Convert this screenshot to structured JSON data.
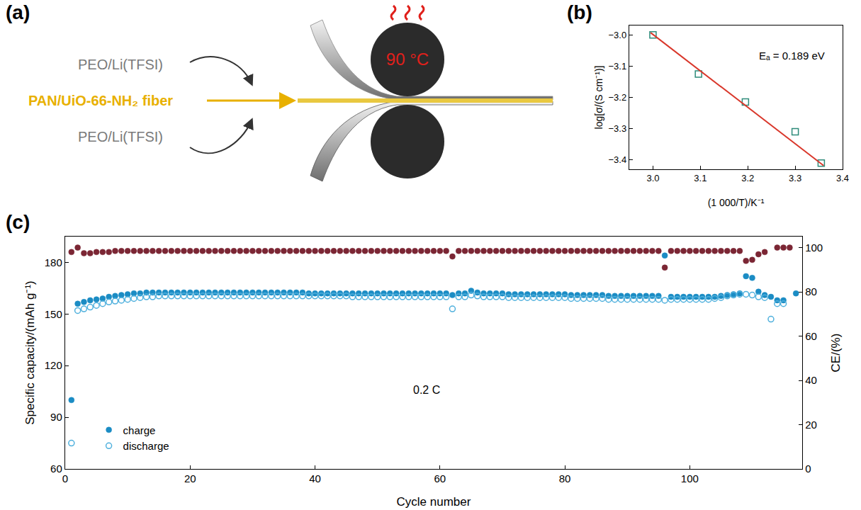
{
  "diagram": {
    "panel_label": "(a)",
    "labels": {
      "top_film": "PEO/Li(TFSI)",
      "fiber": "PAN/UiO-66-NH₂ fiber",
      "bottom_film": "PEO/Li(TFSI)",
      "temperature": "90 °C"
    }
  },
  "chart_data": [
    {
      "panel_label": "(b)",
      "type": "scatter",
      "x_label": "(1 000/T)/K⁻¹",
      "y_label": "log[σ/(S cm⁻¹)]",
      "annotations": [
        "Eₐ = 0.189 eV"
      ],
      "series": [
        {
          "type": "scatter",
          "marker": "open square",
          "color": "#2e8b7a",
          "x": [
            3.0,
            3.096,
            3.195,
            3.3,
            3.355
          ],
          "values": [
            -3.0,
            -3.125,
            -3.215,
            -3.31,
            -3.41
          ]
        },
        {
          "type": "line",
          "line_style": "solid",
          "color": "#d9372b",
          "x": [
            2.995,
            3.36
          ],
          "values": [
            -2.993,
            -3.418
          ]
        }
      ],
      "xlim": [
        2.95,
        3.4
      ],
      "xticks": [
        {
          "value": 3,
          "label": "3.0"
        },
        {
          "value": 3.1,
          "label": "3.1"
        },
        {
          "value": 3.2,
          "label": "3.2"
        },
        {
          "value": 3.3,
          "label": "3.3"
        },
        {
          "value": 3.4,
          "label": "3.4"
        }
      ],
      "ylim": [
        -3.43,
        -2.97
      ],
      "yticks": [
        {
          "value": -3,
          "label": "−3.0"
        },
        {
          "value": -3.1,
          "label": "−3.1"
        },
        {
          "value": -3.2,
          "label": "−3.2"
        },
        {
          "value": -3.3,
          "label": "−3.3"
        },
        {
          "value": -3.4,
          "label": "−3.4"
        }
      ],
      "grid": false
    },
    {
      "panel_label": "(c)",
      "type": "scatter",
      "x_label": "Cycle number",
      "y_label": "Specific capacity/(mAh g⁻¹)",
      "y2_label": "CE/(%)",
      "annotations": [
        "0.2 C"
      ],
      "legend": "lower left",
      "series": [
        {
          "name": "charge",
          "type": "scatter",
          "marker": "circle",
          "color": "#1b8cc4",
          "x": [
            1,
            2,
            3,
            4,
            5,
            6,
            7,
            8,
            9,
            10,
            11,
            12,
            13,
            14,
            15,
            16,
            17,
            18,
            19,
            20,
            21,
            22,
            23,
            24,
            25,
            26,
            27,
            28,
            29,
            30,
            31,
            32,
            33,
            34,
            35,
            36,
            37,
            38,
            39,
            40,
            41,
            42,
            43,
            44,
            45,
            46,
            47,
            48,
            49,
            50,
            51,
            52,
            53,
            54,
            55,
            56,
            57,
            58,
            59,
            60,
            61,
            62,
            63,
            64,
            65,
            66,
            67,
            68,
            69,
            70,
            71,
            72,
            73,
            74,
            75,
            76,
            77,
            78,
            79,
            80,
            81,
            82,
            83,
            84,
            85,
            86,
            87,
            88,
            89,
            90,
            91,
            92,
            93,
            94,
            95,
            96,
            97,
            98,
            99,
            100,
            101,
            102,
            103,
            104,
            105,
            106,
            107,
            108,
            109,
            110,
            111,
            112,
            113,
            114,
            115,
            116,
            117
          ],
          "values": [
            100,
            156,
            157,
            158,
            158.5,
            159,
            160,
            160.5,
            161,
            161.5,
            162,
            162,
            162.5,
            162.5,
            162.5,
            162.5,
            162.5,
            162.5,
            162.5,
            162.5,
            162.5,
            162.5,
            162.5,
            162.5,
            162.5,
            162.5,
            162.5,
            162.5,
            162.5,
            162.5,
            162.5,
            162.5,
            162.5,
            162.5,
            162.5,
            162.5,
            162.5,
            162.5,
            162,
            162,
            162,
            162,
            162,
            162,
            162,
            162,
            162,
            162,
            162,
            162,
            162,
            162,
            162,
            162,
            162,
            162,
            162,
            162,
            162,
            162,
            162,
            161,
            162,
            162,
            163.5,
            162.5,
            162,
            162,
            162,
            162,
            161.5,
            161.5,
            161.5,
            161.5,
            161.5,
            161.5,
            161.5,
            161.5,
            161.5,
            161.5,
            161,
            161,
            161,
            161,
            161,
            161,
            160.5,
            160.5,
            160.5,
            160.5,
            160.5,
            160.5,
            160.5,
            160.5,
            160.5,
            184,
            160,
            160,
            160,
            160,
            160,
            160,
            160,
            160,
            160.5,
            161,
            161.5,
            162,
            172,
            171,
            163,
            161,
            160,
            158,
            158,
            null,
            162
          ]
        },
        {
          "name": "discharge",
          "type": "scatter",
          "marker": "open circle",
          "color": "#4fb0dd",
          "x": [
            1,
            2,
            3,
            4,
            5,
            6,
            7,
            8,
            9,
            10,
            11,
            12,
            13,
            14,
            15,
            16,
            17,
            18,
            19,
            20,
            21,
            22,
            23,
            24,
            25,
            26,
            27,
            28,
            29,
            30,
            31,
            32,
            33,
            34,
            35,
            36,
            37,
            38,
            39,
            40,
            41,
            42,
            43,
            44,
            45,
            46,
            47,
            48,
            49,
            50,
            51,
            52,
            53,
            54,
            55,
            56,
            57,
            58,
            59,
            60,
            61,
            62,
            63,
            64,
            65,
            66,
            67,
            68,
            69,
            70,
            71,
            72,
            73,
            74,
            75,
            76,
            77,
            78,
            79,
            80,
            81,
            82,
            83,
            84,
            85,
            86,
            87,
            88,
            89,
            90,
            91,
            92,
            93,
            94,
            95,
            96,
            97,
            98,
            99,
            100,
            101,
            102,
            103,
            104,
            105,
            106,
            107,
            108,
            109,
            110,
            111,
            112,
            113,
            114,
            115,
            116,
            117
          ],
          "values": [
            75,
            152,
            153,
            154,
            155,
            156,
            157,
            157.5,
            158,
            158.5,
            159,
            159.5,
            160,
            160,
            160.5,
            160.5,
            160.5,
            160.5,
            160.5,
            160.5,
            160.5,
            160.5,
            160.5,
            160.5,
            160.5,
            160.5,
            160.5,
            160.5,
            160.5,
            160.5,
            160.5,
            160.5,
            160.5,
            160.5,
            160.5,
            160.5,
            160.5,
            160.5,
            160.5,
            160.5,
            160.5,
            160.5,
            160.5,
            160.5,
            160.5,
            160,
            160,
            160,
            160,
            160,
            160,
            160,
            160,
            160,
            160,
            160,
            160,
            160,
            160,
            160,
            160,
            153,
            160,
            160,
            161,
            160.5,
            160,
            160,
            160,
            160,
            159.5,
            159.5,
            159.5,
            159.5,
            159.5,
            159.5,
            159.5,
            159.5,
            159.5,
            159.5,
            159,
            159,
            159,
            159,
            159,
            159,
            158.5,
            158.5,
            158.5,
            158.5,
            158.5,
            158.5,
            158.5,
            158.5,
            158.5,
            158,
            158.5,
            158.5,
            158.5,
            158.5,
            158.5,
            158.5,
            158.5,
            159,
            159.5,
            160.5,
            161,
            161.5,
            161.5,
            161,
            160,
            159.5,
            147,
            156,
            156,
            null,
            null
          ]
        },
        {
          "type": "scatter",
          "marker": "circle",
          "color": "#7b2634",
          "axis": "y2",
          "x": [
            1,
            2,
            3,
            4,
            5,
            6,
            7,
            8,
            9,
            10,
            11,
            12,
            13,
            14,
            15,
            16,
            17,
            18,
            19,
            20,
            21,
            22,
            23,
            24,
            25,
            26,
            27,
            28,
            29,
            30,
            31,
            32,
            33,
            34,
            35,
            36,
            37,
            38,
            39,
            40,
            41,
            42,
            43,
            44,
            45,
            46,
            47,
            48,
            49,
            50,
            51,
            52,
            53,
            54,
            55,
            56,
            57,
            58,
            59,
            60,
            61,
            62,
            63,
            64,
            65,
            66,
            67,
            68,
            69,
            70,
            71,
            72,
            73,
            74,
            75,
            76,
            77,
            78,
            79,
            80,
            81,
            82,
            83,
            84,
            85,
            86,
            87,
            88,
            89,
            90,
            91,
            92,
            93,
            94,
            95,
            96,
            97,
            98,
            99,
            100,
            101,
            102,
            103,
            104,
            105,
            106,
            107,
            108,
            109,
            110,
            111,
            112,
            113,
            114,
            115,
            116,
            117
          ],
          "values": [
            98,
            100,
            97.5,
            97.5,
            98,
            98,
            98,
            98.5,
            98.5,
            98.5,
            98.5,
            98.5,
            98.5,
            98.5,
            98.5,
            98.5,
            98.5,
            98.5,
            98.5,
            98.5,
            98.5,
            98.5,
            98.5,
            98.5,
            98.5,
            98.5,
            98.5,
            98.5,
            98.5,
            98.5,
            98.5,
            98.5,
            98.5,
            98.5,
            98.5,
            98.5,
            98.5,
            98.5,
            98.5,
            98.5,
            98.5,
            98.5,
            98.5,
            98.5,
            98.5,
            98.5,
            98.5,
            98.5,
            98.5,
            98.5,
            98.5,
            98.5,
            98.5,
            98.5,
            98.5,
            98.5,
            98.5,
            98.5,
            98.5,
            98.5,
            98.5,
            96,
            98.5,
            98.5,
            98.5,
            98.5,
            98.5,
            98.5,
            98.5,
            98.5,
            98.5,
            98.5,
            98.5,
            98.5,
            98.5,
            98.5,
            98.5,
            98.5,
            98.5,
            98.5,
            98.5,
            98.5,
            98.5,
            98.5,
            98.5,
            98.5,
            98.5,
            98.5,
            98.5,
            98.5,
            98.5,
            98.5,
            98.5,
            98.5,
            98.5,
            91,
            98.5,
            98.5,
            98.5,
            98.5,
            98.5,
            98.5,
            98.5,
            98.5,
            98.5,
            98.5,
            98.5,
            98.5,
            94,
            94.5,
            97,
            98,
            null,
            100,
            100,
            100,
            null
          ]
        }
      ],
      "xlim": [
        0,
        118
      ],
      "xticks": [
        0,
        20,
        40,
        60,
        80,
        100
      ],
      "ylim": [
        60,
        195
      ],
      "yticks": [
        60,
        90,
        120,
        150,
        180
      ],
      "y2lim": [
        0,
        105
      ],
      "y2ticks": [
        0,
        20,
        40,
        60,
        80,
        100
      ],
      "grid": false
    }
  ]
}
